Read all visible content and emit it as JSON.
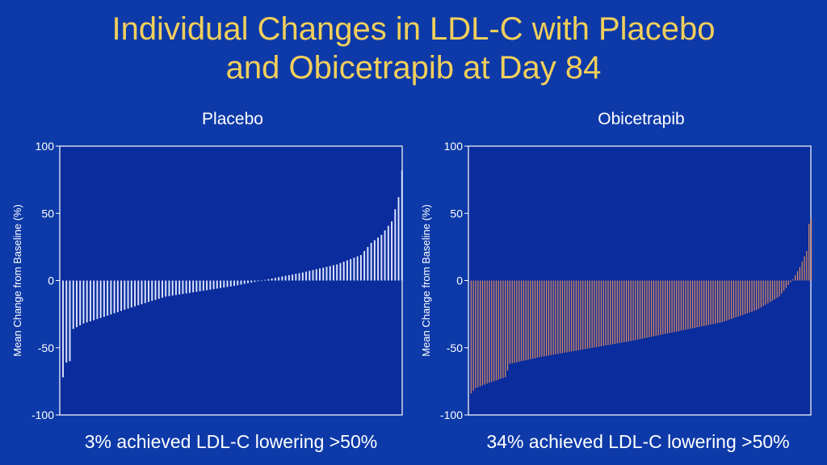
{
  "slide": {
    "title_line1": "Individual Changes in LDL-C with Placebo",
    "title_line2": "and Obicetrapib at Day 84"
  },
  "colors": {
    "background": "#0d3aa8",
    "plot_bg": "#0a2c9c",
    "title": "#f2cf5b",
    "placebo_bar": "#dfe6ff",
    "obicetrapib_bar": "#d98a62"
  },
  "chart_data": [
    {
      "type": "bar",
      "title": "Placebo",
      "ylabel": "Mean Change from Baseline (%)",
      "ylim": [
        -100,
        100
      ],
      "yticks": [
        "100",
        "50",
        "0",
        "-50",
        "-100"
      ],
      "n": 100,
      "key_points": [
        {
          "rank": 0,
          "value": -72
        },
        {
          "rank": 1,
          "value": -61
        },
        {
          "rank": 2,
          "value": -60
        },
        {
          "rank": 3,
          "value": -36
        },
        {
          "rank": 6,
          "value": -32
        },
        {
          "rank": 12,
          "value": -27
        },
        {
          "rank": 20,
          "value": -20
        },
        {
          "rank": 30,
          "value": -12
        },
        {
          "rank": 40,
          "value": -8
        },
        {
          "rank": 50,
          "value": -4
        },
        {
          "rank": 60,
          "value": 1
        },
        {
          "rank": 70,
          "value": 6
        },
        {
          "rank": 80,
          "value": 12
        },
        {
          "rank": 87,
          "value": 19
        },
        {
          "rank": 90,
          "value": 28
        },
        {
          "rank": 93,
          "value": 34
        },
        {
          "rank": 96,
          "value": 44
        },
        {
          "rank": 98,
          "value": 62
        },
        {
          "rank": 99,
          "value": 82
        }
      ],
      "annotation": "3% achieved LDL-C lowering >50%"
    },
    {
      "type": "bar",
      "title": "Obicetrapib",
      "ylabel": "Mean Change from Baseline (%)",
      "ylim": [
        -100,
        100
      ],
      "yticks": [
        "100",
        "50",
        "0",
        "-50",
        "-100"
      ],
      "n": 150,
      "key_points": [
        {
          "rank": 0,
          "value": -84
        },
        {
          "rank": 2,
          "value": -80
        },
        {
          "rank": 8,
          "value": -76
        },
        {
          "rank": 15,
          "value": -72
        },
        {
          "rank": 17,
          "value": -62
        },
        {
          "rank": 30,
          "value": -57
        },
        {
          "rank": 50,
          "value": -51
        },
        {
          "rank": 70,
          "value": -45
        },
        {
          "rank": 90,
          "value": -38
        },
        {
          "rank": 110,
          "value": -31
        },
        {
          "rank": 125,
          "value": -22
        },
        {
          "rank": 135,
          "value": -12
        },
        {
          "rank": 141,
          "value": 1
        },
        {
          "rank": 144,
          "value": 10
        },
        {
          "rank": 147,
          "value": 22
        },
        {
          "rank": 148,
          "value": 42
        },
        {
          "rank": 149,
          "value": 46
        }
      ],
      "annotation": "34% achieved LDL-C lowering >50%"
    }
  ]
}
